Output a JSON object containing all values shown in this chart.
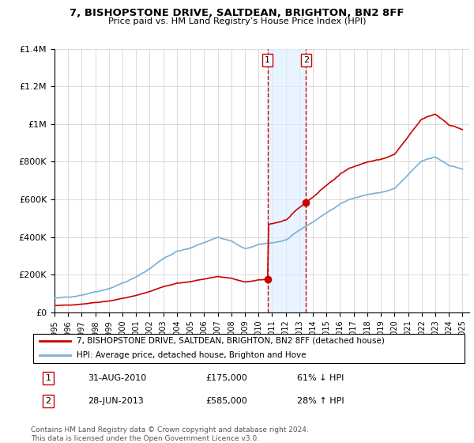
{
  "title": "7, BISHOPSTONE DRIVE, SALTDEAN, BRIGHTON, BN2 8FF",
  "subtitle": "Price paid vs. HM Land Registry’s House Price Index (HPI)",
  "xlim": [
    1995.0,
    2025.5
  ],
  "ylim": [
    0,
    1400000
  ],
  "yticks": [
    0,
    200000,
    400000,
    600000,
    800000,
    1000000,
    1200000,
    1400000
  ],
  "ytick_labels": [
    "£0",
    "£200K",
    "£400K",
    "£600K",
    "£800K",
    "£1M",
    "£1.2M",
    "£1.4M"
  ],
  "sale1_x": 2010.667,
  "sale1_y": 175000,
  "sale2_x": 2013.5,
  "sale2_y": 585000,
  "shade_color": "#daeeff",
  "shade_alpha": 0.6,
  "vline_color": "#cc0000",
  "property_color": "#cc0000",
  "hpi_color": "#7ab0d4",
  "background_color": "#ffffff",
  "grid_color": "#cccccc",
  "legend_label_property": "7, BISHOPSTONE DRIVE, SALTDEAN, BRIGHTON, BN2 8FF (detached house)",
  "legend_label_hpi": "HPI: Average price, detached house, Brighton and Hove",
  "table_rows": [
    {
      "num": "1",
      "date": "31-AUG-2010",
      "price": "£175,000",
      "hpi": "61% ↓ HPI"
    },
    {
      "num": "2",
      "date": "28-JUN-2013",
      "price": "£585,000",
      "hpi": "28% ↑ HPI"
    }
  ],
  "footnote": "Contains HM Land Registry data © Crown copyright and database right 2024.\nThis data is licensed under the Open Government Licence v3.0."
}
